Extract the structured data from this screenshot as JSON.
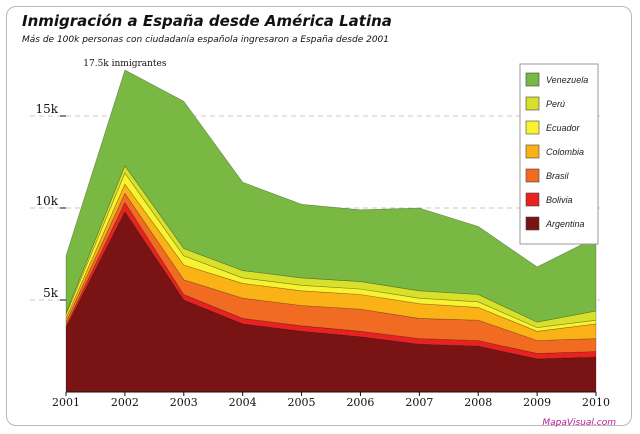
{
  "title": "Inmigración a España desde América Latina",
  "subtitle": "Más de 100k personas con ciudadanía española ingresaron a España desde 2001",
  "credit": "MapaVisual.com",
  "chart_data": {
    "type": "area",
    "stacked": true,
    "title": "Inmigración a España desde América Latina",
    "x": [
      2001,
      2002,
      2003,
      2004,
      2005,
      2006,
      2007,
      2008,
      2009,
      2010
    ],
    "x_tick_labels": [
      "2001",
      "2002",
      "2003",
      "2004",
      "2005",
      "2006",
      "2007",
      "2008",
      "2009",
      "2010"
    ],
    "y_ticks": [
      5000,
      10000,
      15000
    ],
    "y_tick_labels": [
      "5k",
      "10k",
      "15k"
    ],
    "ylim": [
      0,
      18000
    ],
    "grid": "horizontal dashed",
    "legend_position": "right",
    "series": [
      {
        "name": "Argentina",
        "color": "#7a1414",
        "values": [
          3500,
          9800,
          5000,
          3700,
          3300,
          3000,
          2600,
          2500,
          1800,
          1900
        ]
      },
      {
        "name": "Bolivia",
        "color": "#e8231f",
        "values": [
          100,
          500,
          300,
          300,
          300,
          300,
          300,
          300,
          300,
          300
        ]
      },
      {
        "name": "Brasil",
        "color": "#f26b22",
        "values": [
          200,
          500,
          800,
          1100,
          1100,
          1200,
          1100,
          1100,
          700,
          700
        ]
      },
      {
        "name": "Colombia",
        "color": "#fbb217",
        "values": [
          200,
          500,
          800,
          800,
          800,
          800,
          800,
          700,
          500,
          800
        ]
      },
      {
        "name": "Ecuador",
        "color": "#f8f230",
        "values": [
          200,
          600,
          500,
          300,
          300,
          300,
          300,
          300,
          200,
          200
        ]
      },
      {
        "name": "Perú",
        "color": "#d7e02a",
        "values": [
          100,
          400,
          400,
          400,
          400,
          400,
          400,
          400,
          300,
          500
        ]
      },
      {
        "name": "Venezuela",
        "color": "#79b843",
        "values": [
          3100,
          5200,
          8000,
          4800,
          4000,
          3900,
          4500,
          3700,
          3000,
          4000
        ]
      }
    ],
    "annotations": [
      {
        "x": 2002,
        "text": "17.5k inmigrantes"
      }
    ]
  }
}
